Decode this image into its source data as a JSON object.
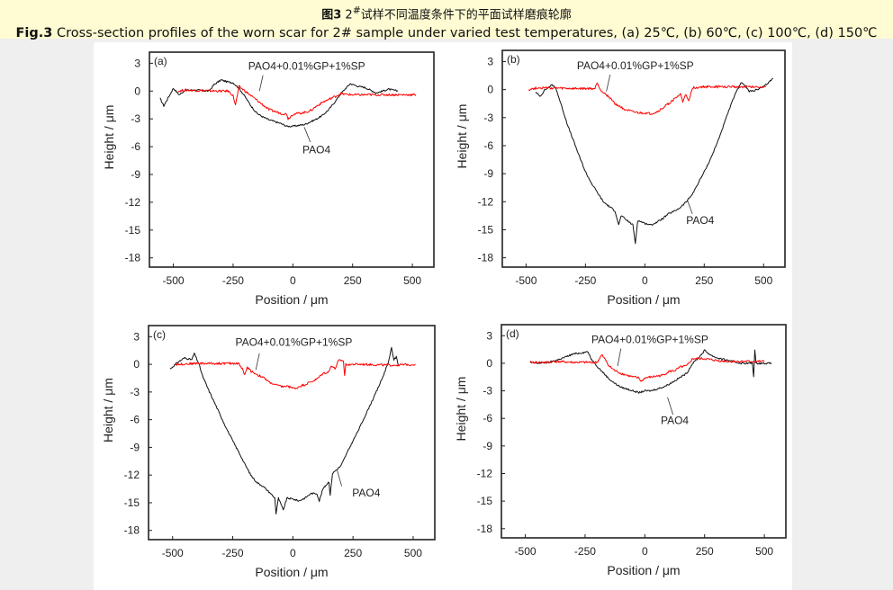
{
  "header": {
    "cn_prefix": "图3",
    "cn_num": "2",
    "cn_sup": "#",
    "cn_rest": "试样不同温度条件下的平面试样磨痕轮廓",
    "en_prefix": "Fig.3",
    "en_rest": " Cross-section profiles of the worn scar for 2# sample under varied test temperatures, (a) 25℃, (b) 60℃, (c) 100℃, (d) 150℃"
  },
  "chart_data": [
    {
      "type": "line",
      "panel_label": "(a)",
      "xlabel": "Position / μm",
      "ylabel": "Height / μm",
      "xlim": [
        -600,
        590
      ],
      "ylim": [
        -19,
        4.2
      ],
      "xticks": [
        -500,
        -250,
        0,
        250,
        500
      ],
      "yticks": [
        3,
        0,
        -3,
        -6,
        -9,
        -12,
        -15,
        -18
      ],
      "grid": false,
      "series": [
        {
          "name": "PAO4",
          "color": "#111111",
          "x": [
            -555,
            -540,
            -500,
            -475,
            -450,
            -400,
            -350,
            -330,
            -300,
            -275,
            -250,
            -225,
            -200,
            -175,
            -150,
            -125,
            -100,
            -75,
            -50,
            -25,
            0,
            25,
            50,
            75,
            100,
            125,
            150,
            175,
            200,
            225,
            240,
            275,
            300,
            350,
            400,
            440
          ],
          "y": [
            -0.8,
            -1.6,
            0.3,
            -0.4,
            0.1,
            0.1,
            0,
            0.7,
            1.2,
            1.0,
            0.9,
            0.3,
            -0.6,
            -1.6,
            -2.4,
            -2.8,
            -3.1,
            -3.3,
            -3.5,
            -3.8,
            -3.8,
            -3.7,
            -3.6,
            -3.3,
            -3.0,
            -2.6,
            -2.0,
            -1.2,
            -0.3,
            0.4,
            0.8,
            0.5,
            0.4,
            -0.2,
            0.2,
            0
          ]
        },
        {
          "name": "PAO4+0.01%GP+1%SP",
          "color": "#ff0000",
          "x": [
            -480,
            -450,
            -300,
            -270,
            -250,
            -240,
            -225,
            -200,
            -175,
            -150,
            -125,
            -100,
            -75,
            -50,
            -25,
            -20,
            0,
            25,
            50,
            75,
            100,
            125,
            150,
            175,
            200,
            250,
            300,
            400,
            515
          ],
          "y": [
            0,
            0.1,
            0,
            0,
            -0.5,
            -1.5,
            0.5,
            0,
            -0.5,
            -1.0,
            -1.5,
            -2.0,
            -2.2,
            -2.4,
            -2.5,
            -3.0,
            -2.5,
            -2.4,
            -2.3,
            -2.1,
            -1.6,
            -1.2,
            -0.9,
            -0.6,
            -0.3,
            -0.4,
            -0.4,
            -0.4,
            -0.4
          ]
        }
      ]
    },
    {
      "type": "line",
      "panel_label": "(b)",
      "xlabel": "Position / μm",
      "ylabel": "Height / μm",
      "xlim": [
        -600,
        590
      ],
      "ylim": [
        -19,
        4.2
      ],
      "xticks": [
        -500,
        -250,
        0,
        250,
        500
      ],
      "yticks": [
        3,
        0,
        -3,
        -6,
        -9,
        -12,
        -15,
        -18
      ],
      "grid": false,
      "series": [
        {
          "name": "PAO4",
          "color": "#111111",
          "x": [
            -460,
            -440,
            -420,
            -390,
            -375,
            -350,
            -325,
            -300,
            -275,
            -250,
            -225,
            -200,
            -175,
            -150,
            -125,
            -110,
            -100,
            -75,
            -50,
            -40,
            -30,
            0,
            25,
            50,
            75,
            100,
            125,
            150,
            175,
            200,
            225,
            250,
            275,
            300,
            325,
            350,
            375,
            400,
            410,
            440,
            475,
            500,
            540
          ],
          "y": [
            -0.3,
            -0.7,
            0,
            0.5,
            0.2,
            -1.8,
            -3.8,
            -5.5,
            -7.2,
            -8.8,
            -10.0,
            -11.0,
            -12.0,
            -12.5,
            -13.0,
            -14.5,
            -13.5,
            -14.0,
            -14.5,
            -16.5,
            -14.0,
            -14.3,
            -14.5,
            -14.2,
            -13.8,
            -13.3,
            -13.0,
            -12.6,
            -12.0,
            -11.2,
            -10.0,
            -8.8,
            -7.5,
            -6.0,
            -4.3,
            -2.5,
            -0.8,
            0.5,
            0.8,
            -0.2,
            0,
            0.3,
            1.2
          ]
        },
        {
          "name": "PAO4+0.01%GP+1%SP",
          "color": "#ff0000",
          "x": [
            -490,
            -450,
            -300,
            -210,
            -200,
            -190,
            -175,
            -150,
            -125,
            -100,
            -75,
            -50,
            -25,
            0,
            25,
            50,
            75,
            100,
            125,
            150,
            160,
            170,
            185,
            200,
            250,
            400,
            510
          ],
          "y": [
            0,
            0.2,
            0.1,
            0.1,
            0.8,
            0.1,
            -0.3,
            -0.8,
            -1.5,
            -1.9,
            -2.2,
            -2.4,
            -2.5,
            -2.5,
            -2.6,
            -2.4,
            -2.0,
            -1.5,
            -1.0,
            -0.5,
            -1.3,
            -0.5,
            -1.3,
            0.2,
            0.3,
            0.3,
            0.3
          ]
        }
      ]
    },
    {
      "type": "line",
      "panel_label": "(c)",
      "xlabel": "Position / μm",
      "ylabel": "Height / μm",
      "xlim": [
        -600,
        590
      ],
      "ylim": [
        -19,
        4.2
      ],
      "xticks": [
        -500,
        -250,
        0,
        250,
        500
      ],
      "yticks": [
        3,
        0,
        -3,
        -6,
        -9,
        -12,
        -15,
        -18
      ],
      "grid": false,
      "series": [
        {
          "name": "PAO4",
          "color": "#111111",
          "x": [
            -510,
            -480,
            -450,
            -420,
            -410,
            -390,
            -375,
            -350,
            -325,
            -300,
            -275,
            -250,
            -225,
            -200,
            -175,
            -150,
            -125,
            -100,
            -75,
            -70,
            -60,
            -40,
            -25,
            0,
            25,
            50,
            75,
            100,
            110,
            125,
            150,
            155,
            165,
            200,
            225,
            250,
            275,
            300,
            325,
            350,
            375,
            400,
            410,
            420,
            430,
            440
          ],
          "y": [
            -0.5,
            0.2,
            0.7,
            0.5,
            1.2,
            0,
            -1.3,
            -2.8,
            -4.2,
            -5.6,
            -7.0,
            -8.3,
            -9.5,
            -10.8,
            -12.0,
            -12.8,
            -13.2,
            -13.8,
            -14.5,
            -16.2,
            -14.5,
            -15.8,
            -14.5,
            -14.6,
            -14.8,
            -14.5,
            -14.0,
            -14.0,
            -14.8,
            -13.5,
            -12.7,
            -14.2,
            -11.8,
            -11.0,
            -9.6,
            -8.3,
            -7.0,
            -5.6,
            -4.2,
            -2.8,
            -1.3,
            0.5,
            1.8,
            0.5,
            0.8,
            -0.2
          ]
        },
        {
          "name": "PAO4+0.01%GP+1%SP",
          "color": "#ff0000",
          "x": [
            -490,
            -400,
            -300,
            -225,
            -210,
            -200,
            -190,
            -175,
            -150,
            -125,
            -100,
            -75,
            -50,
            -25,
            0,
            10,
            25,
            50,
            75,
            100,
            125,
            150,
            160,
            175,
            190,
            210,
            215,
            220,
            300,
            400,
            510
          ],
          "y": [
            0,
            0.1,
            0.1,
            0.1,
            -0.5,
            -1.2,
            -0.3,
            -0.7,
            -1.1,
            -1.4,
            -1.9,
            -2.2,
            -2.4,
            -2.4,
            -2.5,
            -2.7,
            -2.4,
            -2.2,
            -1.9,
            -1.6,
            -1.0,
            -0.8,
            -0.1,
            -0.5,
            0.4,
            0.4,
            -1.2,
            0,
            0,
            -0.1,
            0
          ]
        }
      ]
    },
    {
      "type": "line",
      "panel_label": "(d)",
      "xlabel": "Position / μm",
      "ylabel": "Height / μm",
      "xlim": [
        -600,
        590
      ],
      "ylim": [
        -19,
        4.2
      ],
      "xticks": [
        -500,
        -250,
        0,
        250,
        500
      ],
      "yticks": [
        3,
        0,
        -3,
        -6,
        -9,
        -12,
        -15,
        -18
      ],
      "grid": false,
      "series": [
        {
          "name": "PAO4",
          "color": "#111111",
          "x": [
            -480,
            -450,
            -400,
            -350,
            -300,
            -250,
            -240,
            -225,
            -200,
            -175,
            -150,
            -125,
            -100,
            -75,
            -50,
            -25,
            0,
            25,
            50,
            75,
            100,
            125,
            150,
            175,
            200,
            225,
            250,
            275,
            300,
            350,
            400,
            450,
            455,
            460,
            465,
            500,
            530
          ],
          "y": [
            0.1,
            0,
            0.1,
            0.5,
            1.0,
            1.2,
            1.3,
            0.5,
            -0.3,
            -1.0,
            -1.7,
            -2.2,
            -2.6,
            -2.8,
            -3.0,
            -3.2,
            -3.0,
            -3.0,
            -2.8,
            -2.6,
            -2.3,
            -1.9,
            -1.5,
            -1.1,
            0,
            0.6,
            1.4,
            0.9,
            0.6,
            0.3,
            0,
            0,
            -1.5,
            1.5,
            0,
            0,
            0
          ]
        },
        {
          "name": "PAO4+0.01%GP+1%SP",
          "color": "#ff0000",
          "x": [
            -480,
            -400,
            -380,
            -300,
            -200,
            -180,
            -160,
            -150,
            -125,
            -100,
            -75,
            -50,
            -25,
            -15,
            0,
            25,
            50,
            75,
            100,
            125,
            150,
            175,
            200,
            225,
            250,
            300,
            350,
            450,
            500
          ],
          "y": [
            0.1,
            0.1,
            0.2,
            0.1,
            0.1,
            0.9,
            0.2,
            -0.3,
            -0.8,
            -1.1,
            -1.3,
            -1.5,
            -1.6,
            -2.0,
            -1.6,
            -1.5,
            -1.4,
            -1.3,
            -0.9,
            -0.8,
            -0.4,
            -0.3,
            0.5,
            0.5,
            0.5,
            0.3,
            0.2,
            0.2,
            0.2
          ]
        }
      ]
    }
  ]
}
